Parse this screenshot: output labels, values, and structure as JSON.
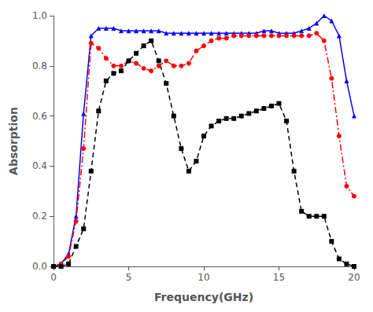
{
  "chart_data": {
    "type": "line",
    "xlabel": "Frequency(GHz)",
    "ylabel": "Absorption",
    "xlim": [
      0,
      20
    ],
    "ylim": [
      0,
      1.0
    ],
    "xticks": [
      0,
      5,
      10,
      15,
      20
    ],
    "yticks": [
      {
        "value": 0.0,
        "label": "0.0"
      },
      {
        "value": 0.2,
        "label": "0.2"
      },
      {
        "value": 0.4,
        "label": "0.4"
      },
      {
        "value": 0.6,
        "label": "0.6"
      },
      {
        "value": 0.8,
        "label": "0.8"
      },
      {
        "value": 1.0,
        "label": "1.0"
      }
    ],
    "grid": false,
    "x": [
      0,
      0.5,
      1.0,
      1.5,
      2.0,
      2.5,
      3.0,
      3.5,
      4.0,
      4.5,
      5.0,
      5.5,
      6.0,
      6.5,
      7.0,
      7.5,
      8.0,
      8.5,
      9.0,
      9.5,
      10.0,
      10.5,
      11.0,
      11.5,
      12.0,
      12.5,
      13.0,
      13.5,
      14.0,
      14.5,
      15.0,
      15.5,
      16.0,
      16.5,
      17.0,
      17.5,
      18.0,
      18.5,
      19.0,
      19.5,
      20.0
    ],
    "series": [
      {
        "color": "#0000ff",
        "marker": "triangle",
        "line_style": "solid",
        "values": [
          0.0,
          0.01,
          0.05,
          0.2,
          0.61,
          0.92,
          0.95,
          0.95,
          0.95,
          0.94,
          0.94,
          0.94,
          0.94,
          0.94,
          0.94,
          0.93,
          0.93,
          0.93,
          0.93,
          0.93,
          0.93,
          0.93,
          0.93,
          0.93,
          0.93,
          0.93,
          0.93,
          0.93,
          0.94,
          0.94,
          0.93,
          0.93,
          0.93,
          0.94,
          0.95,
          0.97,
          1.0,
          0.98,
          0.92,
          0.74,
          0.6
        ]
      },
      {
        "color": "#ff0000",
        "marker": "circle",
        "line_style": "dashdot",
        "values": [
          0.0,
          0.01,
          0.04,
          0.18,
          0.47,
          0.89,
          0.87,
          0.83,
          0.8,
          0.8,
          0.82,
          0.81,
          0.79,
          0.78,
          0.8,
          0.82,
          0.8,
          0.8,
          0.81,
          0.86,
          0.88,
          0.9,
          0.91,
          0.91,
          0.92,
          0.92,
          0.92,
          0.92,
          0.92,
          0.92,
          0.92,
          0.92,
          0.92,
          0.92,
          0.92,
          0.93,
          0.9,
          0.75,
          0.52,
          0.32,
          0.28
        ]
      },
      {
        "color": "#000000",
        "marker": "square",
        "line_style": "dashed",
        "values": [
          0.0,
          0.0,
          0.01,
          0.08,
          0.15,
          0.38,
          0.62,
          0.74,
          0.77,
          0.78,
          0.82,
          0.85,
          0.88,
          0.9,
          0.82,
          0.73,
          0.6,
          0.47,
          0.38,
          0.42,
          0.52,
          0.56,
          0.58,
          0.59,
          0.59,
          0.6,
          0.61,
          0.62,
          0.63,
          0.64,
          0.65,
          0.58,
          0.38,
          0.22,
          0.2,
          0.2,
          0.2,
          0.1,
          0.03,
          0.01,
          0.0
        ]
      }
    ]
  }
}
